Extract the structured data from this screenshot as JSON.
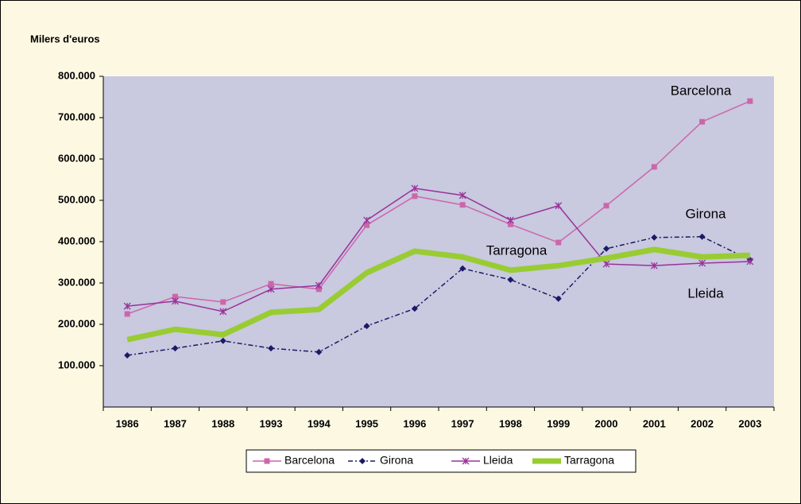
{
  "chart_data": {
    "type": "line",
    "ylabel": "Milers d'euros",
    "categories": [
      "1986",
      "1987",
      "1988",
      "1993",
      "1994",
      "1995",
      "1996",
      "1997",
      "1998",
      "1999",
      "2000",
      "2001",
      "2002",
      "2003"
    ],
    "series": [
      {
        "name": "Barcelona",
        "color": "#cc66aa",
        "marker": "square",
        "dash": "solid",
        "width": 1.5,
        "values": [
          225000,
          267000,
          254000,
          298000,
          285000,
          440000,
          510000,
          489000,
          442000,
          398000,
          487000,
          581000,
          690000,
          740000
        ]
      },
      {
        "name": "Girona",
        "color": "#1a1a66",
        "marker": "diamond",
        "dash": "dashdot",
        "width": 1.5,
        "values": [
          125000,
          142000,
          160000,
          142000,
          133000,
          196000,
          238000,
          335000,
          308000,
          262000,
          383000,
          410000,
          412000,
          356000
        ]
      },
      {
        "name": "Lleida",
        "color": "#993399",
        "marker": "cross",
        "dash": "solid",
        "width": 1.5,
        "values": [
          244000,
          256000,
          231000,
          285000,
          294000,
          452000,
          529000,
          512000,
          452000,
          487000,
          346000,
          342000,
          348000,
          352000
        ]
      },
      {
        "name": "Tarragona",
        "color": "#99cc33",
        "marker": "none",
        "dash": "solid",
        "width": 7,
        "values": [
          163000,
          188000,
          175000,
          229000,
          236000,
          325000,
          377000,
          363000,
          331000,
          342000,
          360000,
          381000,
          363000,
          367000
        ]
      }
    ],
    "annotations": [
      "Barcelona",
      "Girona",
      "Tarragona",
      "Lleida"
    ],
    "ylim": [
      0,
      800000
    ],
    "yticks": [
      {
        "value": 100000,
        "label": "100.000"
      },
      {
        "value": 200000,
        "label": "200.000"
      },
      {
        "value": 300000,
        "label": "300.000"
      },
      {
        "value": 400000,
        "label": "400.000"
      },
      {
        "value": 500000,
        "label": "500.000"
      },
      {
        "value": 600000,
        "label": "600.000"
      },
      {
        "value": 700000,
        "label": "700.000"
      },
      {
        "value": 800000,
        "label": "800.000"
      }
    ],
    "grid": false,
    "legend": "bottom"
  }
}
